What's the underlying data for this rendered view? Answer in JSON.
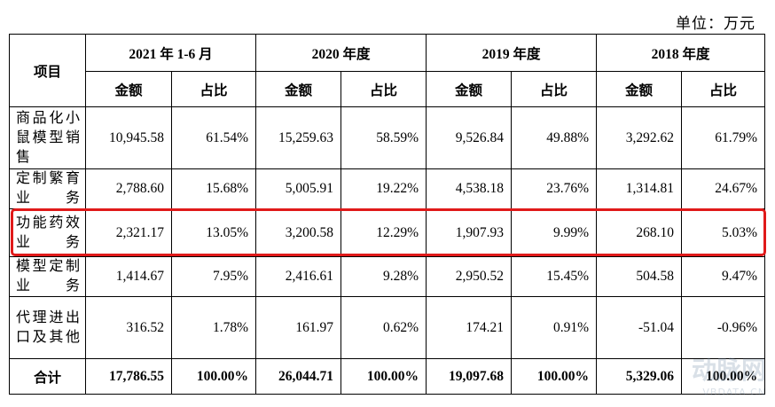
{
  "unit": "单位：万元",
  "headers": {
    "item": "项目",
    "periods": [
      "2021 年 1-6 月",
      "2020 年度",
      "2019 年度",
      "2018 年度"
    ],
    "amount": "金额",
    "ratio": "占比"
  },
  "rows": [
    {
      "label": "商品化小鼠模型销售",
      "values": [
        "10,945.58",
        "61.54%",
        "15,259.63",
        "58.59%",
        "9,526.84",
        "49.88%",
        "3,292.62",
        "61.79%"
      ]
    },
    {
      "label": "定制繁育业务",
      "values": [
        "2,788.60",
        "15.68%",
        "5,005.91",
        "19.22%",
        "4,538.18",
        "23.76%",
        "1,314.81",
        "24.67%"
      ]
    },
    {
      "label": "功能药效业务",
      "values": [
        "2,321.17",
        "13.05%",
        "3,200.58",
        "12.29%",
        "1,907.93",
        "9.99%",
        "268.10",
        "5.03%"
      ]
    },
    {
      "label": "模型定制业务",
      "values": [
        "1,414.67",
        "7.95%",
        "2,416.61",
        "9.28%",
        "2,950.52",
        "15.45%",
        "504.58",
        "9.47%"
      ]
    },
    {
      "label": "代理进出口及其他",
      "values": [
        "316.52",
        "1.78%",
        "161.97",
        "0.62%",
        "174.21",
        "0.91%",
        "-51.04",
        "-0.96%"
      ]
    }
  ],
  "total": {
    "label": "合计",
    "values": [
      "17,786.55",
      "100.00%",
      "26,044.71",
      "100.00%",
      "19,097.68",
      "100.00%",
      "5,329.06",
      "100.00%"
    ]
  },
  "highlight_color": "#e01a1a",
  "watermark": {
    "cn": "动脉网",
    "en": "VBDATA.CN"
  }
}
